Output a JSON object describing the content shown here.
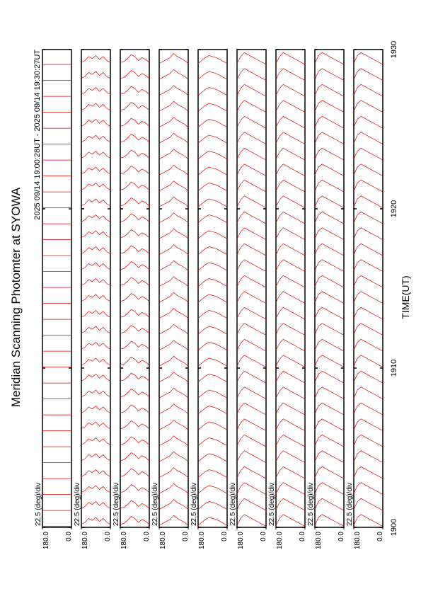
{
  "chart_data": {
    "type": "line",
    "title": "Meridian Scanning Photomter at SYOWA",
    "subtitle": "2025 09/14 19:00:28UT - 2025 09/14 19:30:27UT",
    "xlabel": "TIME(UT)",
    "scale_label": "22.5 (deg)/div",
    "xlim": [
      1900,
      1930
    ],
    "xticks": [
      1900,
      1910,
      1920,
      1930
    ],
    "ylim": [
      0,
      180
    ],
    "yticks": [
      {
        "value": 0,
        "label": "0.0"
      },
      {
        "value": 180,
        "label": "180.0"
      }
    ],
    "color": "#e00000",
    "x": [
      1900,
      1901,
      1902,
      1903,
      1904,
      1905,
      1906,
      1907,
      1908,
      1909,
      1910,
      1911,
      1912,
      1913,
      1914,
      1915,
      1916,
      1917,
      1918,
      1919,
      1920,
      1921,
      1922,
      1923,
      1924,
      1925,
      1926,
      1927,
      1928,
      1929
    ],
    "angles": [
      0,
      22.5,
      45,
      67.5,
      90,
      112.5,
      135,
      157.5,
      180
    ],
    "panels": [
      {
        "values": [
          0.1,
          0.1,
          0.1,
          0.1,
          0.1,
          0.1,
          0.1,
          0.1,
          0.1
        ]
      },
      {
        "values": [
          0.3,
          0.5,
          0.9,
          0.6,
          1.0,
          0.7,
          0.9,
          0.5,
          0.3
        ]
      },
      {
        "values": [
          0.3,
          0.6,
          0.8,
          0.5,
          0.9,
          1.1,
          0.7,
          0.4,
          0.3
        ]
      },
      {
        "values": [
          0.2,
          0.5,
          0.7,
          0.9,
          1.2,
          0.8,
          0.6,
          0.4,
          0.2
        ]
      },
      {
        "values": [
          0.2,
          0.4,
          0.6,
          0.8,
          0.9,
          1.0,
          0.8,
          0.5,
          0.2
        ]
      },
      {
        "values": [
          0.1,
          0.3,
          0.5,
          0.7,
          0.9,
          1.1,
          1.3,
          0.9,
          0.2
        ]
      },
      {
        "values": [
          0.1,
          0.3,
          0.5,
          0.7,
          0.9,
          1.1,
          1.3,
          0.9,
          0.2
        ]
      },
      {
        "values": [
          0.1,
          0.3,
          0.5,
          0.7,
          0.9,
          1.1,
          1.3,
          1.0,
          0.2
        ]
      },
      {
        "values": [
          0.1,
          0.3,
          0.5,
          0.7,
          0.9,
          1.1,
          1.3,
          1.0,
          0.2
        ]
      }
    ]
  }
}
